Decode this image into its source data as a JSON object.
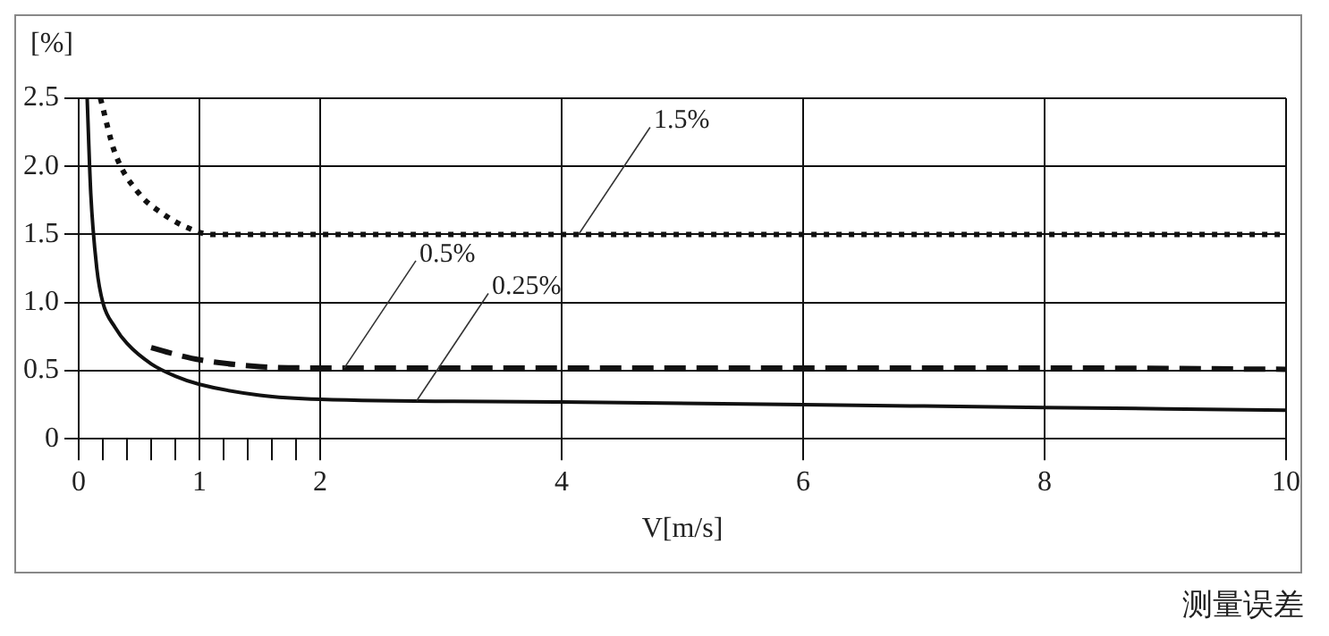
{
  "chart_data": {
    "type": "line",
    "ylabel": "[%]",
    "xlabel": "V[m/s]",
    "xlim": [
      0,
      10
    ],
    "xticks": [
      0,
      {
        "value": 0.2,
        "label": null
      },
      {
        "value": 0.4,
        "label": null
      },
      {
        "value": 0.6,
        "label": null
      },
      {
        "value": 0.8,
        "label": null
      },
      1,
      {
        "value": 1.2,
        "label": null
      },
      {
        "value": 1.4,
        "label": null
      },
      {
        "value": 1.6,
        "label": null
      },
      {
        "value": 1.8,
        "label": null
      },
      2,
      4,
      6,
      8,
      10
    ],
    "ylim": [
      0,
      2.5
    ],
    "yticks": [
      0,
      {
        "value": 0.5,
        "label": "0.5"
      },
      {
        "value": 1,
        "label": "1.0"
      },
      1.5,
      {
        "value": 2,
        "label": "2.0"
      },
      2.5
    ],
    "grid": true,
    "legend": false,
    "marker": "none",
    "series": [
      {
        "color": "#111111",
        "line_style": "solid",
        "x": [
          0.07,
          0.1,
          0.15,
          0.2,
          0.3,
          0.4,
          0.6,
          0.8,
          1,
          1.5,
          2,
          4,
          6,
          8,
          10
        ],
        "values": [
          2.5,
          1.8,
          1.25,
          1.0,
          0.82,
          0.7,
          0.55,
          0.46,
          0.4,
          0.32,
          0.29,
          0.27,
          0.25,
          0.23,
          0.21
        ]
      },
      {
        "color": "#111111",
        "line_style": "dashed",
        "x": [
          0.6,
          0.8,
          1,
          1.5,
          2,
          4,
          6,
          8,
          10
        ],
        "values": [
          0.67,
          0.62,
          0.58,
          0.53,
          0.52,
          0.52,
          0.52,
          0.52,
          0.51
        ]
      },
      {
        "color": "#111111",
        "line_style": "dotted",
        "x": [
          0.18,
          0.3,
          0.5,
          0.7,
          0.9,
          1.1,
          2,
          4,
          6,
          8,
          10
        ],
        "values": [
          2.5,
          2.1,
          1.8,
          1.65,
          1.55,
          1.5,
          1.5,
          1.5,
          1.5,
          1.5,
          1.5
        ]
      }
    ],
    "annotations": [
      {
        "text": "1.5%",
        "x": 4.14,
        "y": 1.5
      },
      {
        "text": "0.5%",
        "x": 2.2,
        "y": 0.52
      },
      {
        "text": "0.25%",
        "x": 2.8,
        "y": 0.28
      },
      "测量误差"
    ]
  }
}
